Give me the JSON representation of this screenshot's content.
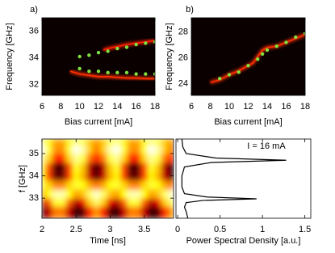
{
  "chart_data": [
    {
      "type": "scatter",
      "label": "a)",
      "xlabel": "Bias current [mA]",
      "ylabel": "Frequency [GHz]",
      "background": "#0a0000",
      "xlim": [
        6,
        18
      ],
      "ylim": [
        31.2,
        37
      ],
      "xticks": [
        6,
        8,
        10,
        12,
        14,
        16,
        18
      ],
      "yticks": [
        32,
        34,
        36
      ],
      "series": [
        {
          "style": "line",
          "color": "#ff3000",
          "x": [
            9,
            10,
            11,
            12,
            13,
            14,
            15,
            16,
            17,
            18
          ],
          "values": [
            33.0,
            32.8,
            32.7,
            32.6,
            32.6,
            32.55,
            32.5,
            32.5,
            32.45,
            32.45
          ]
        },
        {
          "style": "line",
          "color": "#ff2000",
          "x": [
            12.5,
            13,
            14,
            15,
            16,
            17,
            18
          ],
          "values": [
            34.6,
            34.7,
            34.85,
            35.0,
            35.1,
            35.2,
            35.3
          ]
        },
        {
          "style": "markers",
          "color": "#80e040",
          "x": [
            10,
            11,
            12,
            13,
            14,
            15,
            16,
            17,
            18
          ],
          "values": [
            34.1,
            34.2,
            34.4,
            34.5,
            34.7,
            34.8,
            35.0,
            35.1,
            35.2
          ]
        },
        {
          "style": "markers",
          "color": "#80e040",
          "x": [
            10,
            11,
            12,
            13,
            14,
            15,
            16,
            17,
            18
          ],
          "values": [
            33.2,
            33.0,
            33.0,
            32.9,
            32.9,
            32.9,
            32.8,
            32.8,
            32.8
          ]
        }
      ]
    },
    {
      "type": "scatter",
      "label": "b)",
      "xlabel": "Bias current [mA]",
      "ylabel": "Frequency [GHz]",
      "background": "#0a0000",
      "xlim": [
        6,
        18
      ],
      "ylim": [
        23.1,
        29.1
      ],
      "xticks": [
        6,
        8,
        10,
        12,
        14,
        16,
        18
      ],
      "yticks": [
        24,
        26,
        28
      ],
      "series": [
        {
          "style": "line",
          "color": "#ff3000",
          "x": [
            8,
            9,
            10,
            11,
            12,
            12.5,
            13,
            13.5,
            14,
            15,
            16,
            17,
            18
          ],
          "values": [
            24.1,
            24.3,
            24.7,
            25.0,
            25.4,
            25.6,
            26.1,
            26.6,
            26.8,
            26.9,
            27.2,
            27.5,
            27.8
          ]
        },
        {
          "style": "markers",
          "color": "#80e040",
          "x": [
            9,
            10,
            11,
            12,
            13,
            13.5,
            14,
            15,
            16,
            17,
            18
          ],
          "values": [
            24.4,
            24.7,
            24.9,
            25.4,
            25.9,
            26.3,
            26.6,
            26.9,
            27.2,
            27.6,
            27.9
          ]
        }
      ]
    },
    {
      "type": "heatmap",
      "xlabel": "Time [ns]",
      "ylabel": "f [GHz]",
      "colormap": "hot",
      "xlim": [
        2,
        3.93
      ],
      "ylim": [
        32.1,
        35.65
      ],
      "xticks": [
        2,
        2.5,
        3,
        3.5
      ],
      "yticks": [
        33,
        34,
        35
      ],
      "x": [
        2.0,
        2.1,
        2.2,
        2.3,
        2.4,
        2.5,
        2.6,
        2.7,
        2.8,
        2.9,
        3.0,
        3.1,
        3.2,
        3.3,
        3.4,
        3.5,
        3.6,
        3.7,
        3.8,
        3.9
      ],
      "y": [
        32.5,
        32.8,
        33.2,
        33.6,
        34.0,
        34.4,
        34.8,
        35.2,
        35.6
      ],
      "z": [
        [
          0.06,
          0.29,
          0.56,
          0.56,
          0.29,
          0.06,
          0.14,
          0.44,
          0.6,
          0.44,
          0.14,
          0.06,
          0.29,
          0.56,
          0.56,
          0.29,
          0.06,
          0.14,
          0.44,
          0.6
        ],
        [
          0.26,
          0.51,
          0.8,
          0.8,
          0.51,
          0.26,
          0.35,
          0.68,
          0.85,
          0.68,
          0.35,
          0.26,
          0.51,
          0.8,
          0.8,
          0.51,
          0.26,
          0.35,
          0.68,
          0.85
        ],
        [
          0.61,
          0.75,
          0.92,
          0.92,
          0.75,
          0.61,
          0.66,
          0.85,
          0.95,
          0.85,
          0.66,
          0.61,
          0.75,
          0.92,
          0.92,
          0.75,
          0.61,
          0.66,
          0.85,
          0.95
        ],
        [
          0.8,
          0.69,
          0.57,
          0.57,
          0.69,
          0.8,
          0.76,
          0.62,
          0.55,
          0.62,
          0.76,
          0.8,
          0.69,
          0.57,
          0.57,
          0.69,
          0.8,
          0.76,
          0.62,
          0.55
        ],
        [
          0.74,
          0.47,
          0.15,
          0.15,
          0.47,
          0.74,
          0.64,
          0.29,
          0.1,
          0.29,
          0.64,
          0.74,
          0.47,
          0.15,
          0.15,
          0.47,
          0.74,
          0.64,
          0.29,
          0.1
        ],
        [
          0.79,
          0.48,
          0.11,
          0.11,
          0.48,
          0.79,
          0.67,
          0.27,
          0.05,
          0.27,
          0.67,
          0.79,
          0.48,
          0.11,
          0.11,
          0.48,
          0.79,
          0.67,
          0.27,
          0.05
        ],
        [
          0.89,
          0.69,
          0.44,
          0.44,
          0.69,
          0.89,
          0.82,
          0.55,
          0.4,
          0.55,
          0.82,
          0.89,
          0.69,
          0.44,
          0.44,
          0.69,
          0.89,
          0.82,
          0.55,
          0.4
        ],
        [
          0.99,
          0.81,
          0.59,
          0.59,
          0.81,
          0.99,
          0.92,
          0.68,
          0.55,
          0.68,
          0.92,
          0.99,
          0.81,
          0.59,
          0.59,
          0.81,
          0.99,
          0.92,
          0.68,
          0.55
        ],
        [
          0.85,
          0.74,
          0.62,
          0.62,
          0.74,
          0.85,
          0.81,
          0.67,
          0.6,
          0.67,
          0.81,
          0.85,
          0.74,
          0.62,
          0.62,
          0.74,
          0.85,
          0.81,
          0.67,
          0.6
        ]
      ]
    },
    {
      "type": "line",
      "xlabel": "Power Spectral Density [a.u.]",
      "annotation": "I = 16 mA",
      "xlim": [
        -0.02,
        1.57
      ],
      "ylim": [
        32.1,
        35.65
      ],
      "xticks": [
        0,
        0.5,
        1,
        1.5
      ],
      "series": [
        {
          "color": "#000000",
          "y": [
            32.1,
            32.4,
            32.6,
            32.8,
            32.9,
            32.97,
            33.05,
            33.2,
            33.5,
            34.0,
            34.4,
            34.6,
            34.7,
            34.8,
            35.0,
            35.3,
            35.65
          ],
          "values": [
            0.12,
            0.1,
            0.08,
            0.1,
            0.3,
            0.93,
            0.35,
            0.08,
            0.05,
            0.05,
            0.08,
            0.4,
            1.28,
            0.45,
            0.1,
            0.06,
            0.05
          ]
        }
      ]
    }
  ]
}
